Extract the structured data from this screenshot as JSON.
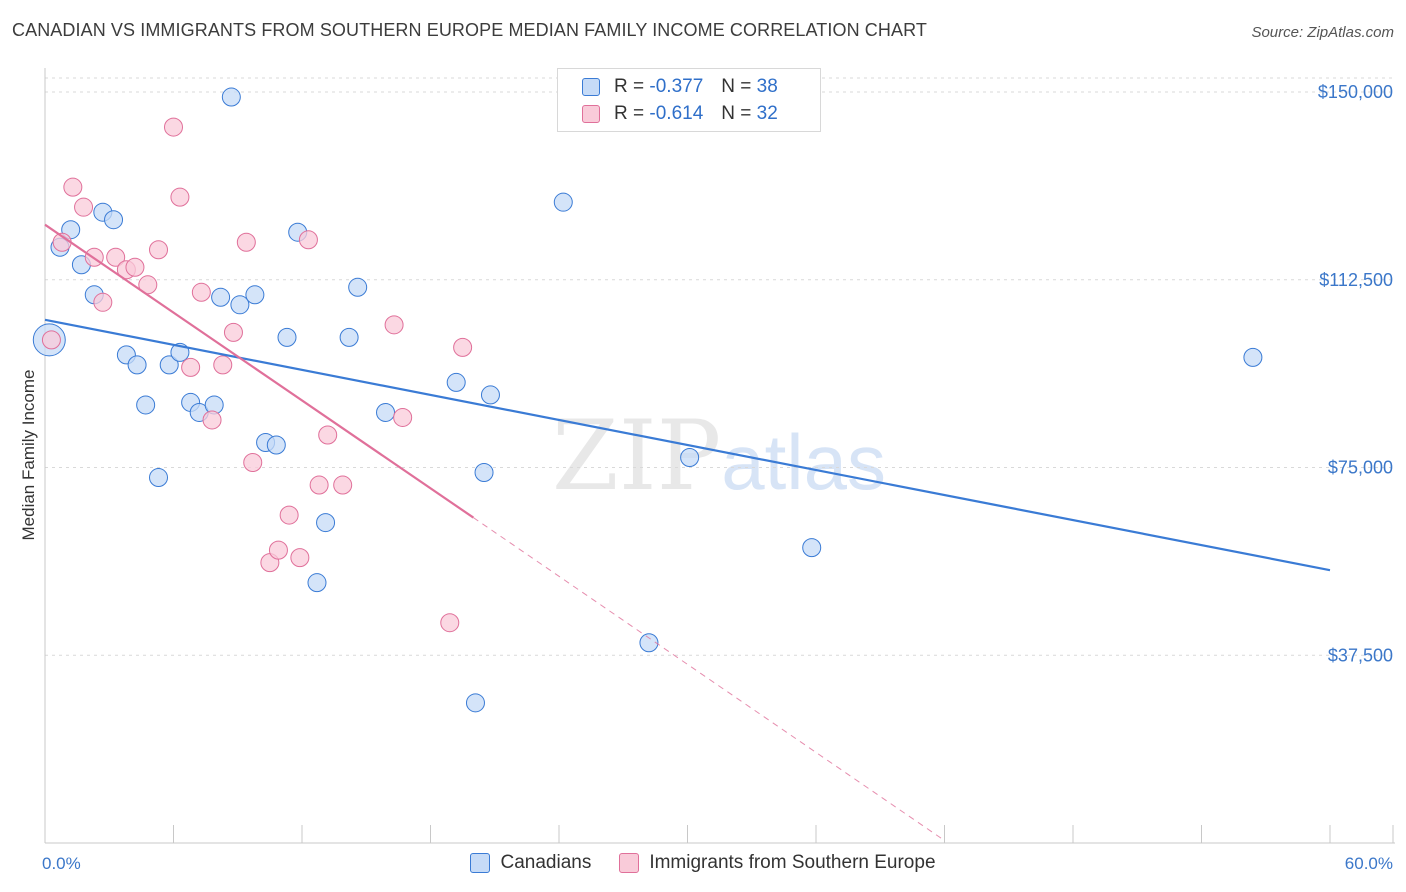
{
  "title": "CANADIAN VS IMMIGRANTS FROM SOUTHERN EUROPE MEDIAN FAMILY INCOME CORRELATION CHART",
  "source": "Source: ZipAtlas.com",
  "watermark": {
    "zip": "ZIP",
    "atlas": "atlas"
  },
  "legend": {
    "r_label": "R =",
    "n_label": "N =",
    "series1": {
      "r": "-0.377",
      "n": "38"
    },
    "series2": {
      "r": "-0.614",
      "n": "32"
    }
  },
  "bottom_legend": {
    "series1": "Canadians",
    "series2": "Immigrants from Southern Europe"
  },
  "chart_data": {
    "type": "scatter",
    "title": "CANADIAN VS IMMIGRANTS FROM SOUTHERN EUROPE MEDIAN FAMILY INCOME CORRELATION CHART",
    "xlabel": "",
    "ylabel": "Median Family Income",
    "xlim": [
      0,
      60
    ],
    "ylim": [
      0,
      156000
    ],
    "x_tick_labels": [
      "0.0%",
      "60.0%"
    ],
    "y_ticks": [
      37500,
      75000,
      112500,
      150000
    ],
    "y_tick_labels": [
      "$37,500",
      "$75,000",
      "$112,500",
      "$150,000"
    ],
    "colors": {
      "series1": "#3a7bd5",
      "series1_fill": "#c6dbf7",
      "series2": "#e0709a",
      "series2_fill": "#f9cbd9"
    },
    "series": [
      {
        "name": "Canadians",
        "points": [
          [
            0.2,
            100500,
            16
          ],
          [
            0.7,
            119000,
            9
          ],
          [
            1.2,
            122500,
            9
          ],
          [
            1.7,
            115500,
            9
          ],
          [
            2.3,
            109500,
            9
          ],
          [
            2.7,
            126000,
            9
          ],
          [
            3.2,
            124500,
            9
          ],
          [
            3.8,
            97500,
            9
          ],
          [
            4.3,
            95500,
            9
          ],
          [
            4.7,
            87500,
            9
          ],
          [
            5.3,
            73000,
            9
          ],
          [
            5.8,
            95500,
            9
          ],
          [
            6.3,
            98000,
            9
          ],
          [
            6.8,
            88000,
            9
          ],
          [
            7.2,
            86000,
            9
          ],
          [
            7.9,
            87500,
            9
          ],
          [
            8.2,
            109000,
            9
          ],
          [
            8.7,
            149000,
            9
          ],
          [
            9.1,
            107500,
            9
          ],
          [
            9.8,
            109500,
            9
          ],
          [
            10.3,
            80000,
            9
          ],
          [
            10.8,
            79500,
            9
          ],
          [
            11.3,
            101000,
            9
          ],
          [
            11.8,
            122000,
            9
          ],
          [
            12.7,
            52000,
            9
          ],
          [
            13.1,
            64000,
            9
          ],
          [
            14.2,
            101000,
            9
          ],
          [
            14.6,
            111000,
            9
          ],
          [
            15.9,
            86000,
            9
          ],
          [
            19.2,
            92000,
            9
          ],
          [
            20.1,
            28000,
            9
          ],
          [
            20.5,
            74000,
            9
          ],
          [
            20.8,
            89500,
            9
          ],
          [
            24.2,
            128000,
            9
          ],
          [
            28.2,
            40000,
            9
          ],
          [
            30.1,
            77000,
            9
          ],
          [
            35.8,
            59000,
            9
          ],
          [
            56.4,
            97000,
            9
          ]
        ],
        "trend": {
          "x0": 0,
          "y0": 104500,
          "x1": 60,
          "y1": 54500
        }
      },
      {
        "name": "Immigrants from Southern Europe",
        "points": [
          [
            0.3,
            100500,
            9
          ],
          [
            0.8,
            120000,
            9
          ],
          [
            1.3,
            131000,
            9
          ],
          [
            1.8,
            127000,
            9
          ],
          [
            2.3,
            117000,
            9
          ],
          [
            2.7,
            108000,
            9
          ],
          [
            3.3,
            117000,
            9
          ],
          [
            3.8,
            114500,
            9
          ],
          [
            4.2,
            115000,
            9
          ],
          [
            4.8,
            111500,
            9
          ],
          [
            5.3,
            118500,
            9
          ],
          [
            6.0,
            143000,
            9
          ],
          [
            6.3,
            129000,
            9
          ],
          [
            6.8,
            95000,
            9
          ],
          [
            7.3,
            110000,
            9
          ],
          [
            7.8,
            84500,
            9
          ],
          [
            8.3,
            95500,
            9
          ],
          [
            8.8,
            102000,
            9
          ],
          [
            9.4,
            120000,
            9
          ],
          [
            9.7,
            76000,
            9
          ],
          [
            10.5,
            56000,
            9
          ],
          [
            10.9,
            58500,
            9
          ],
          [
            11.4,
            65500,
            9
          ],
          [
            11.9,
            57000,
            9
          ],
          [
            12.3,
            120500,
            9
          ],
          [
            12.8,
            71500,
            9
          ],
          [
            13.2,
            81500,
            9
          ],
          [
            13.9,
            71500,
            9
          ],
          [
            16.3,
            103500,
            9
          ],
          [
            16.7,
            85000,
            9
          ],
          [
            18.9,
            44000,
            9
          ],
          [
            19.5,
            99000,
            9
          ]
        ],
        "trend": {
          "x0": 0,
          "y0": 123500,
          "x1": 20,
          "y1": 65000
        },
        "trend_dashed": {
          "x0": 20,
          "y0": 65000,
          "x1": 42,
          "y1": 500
        }
      }
    ]
  }
}
